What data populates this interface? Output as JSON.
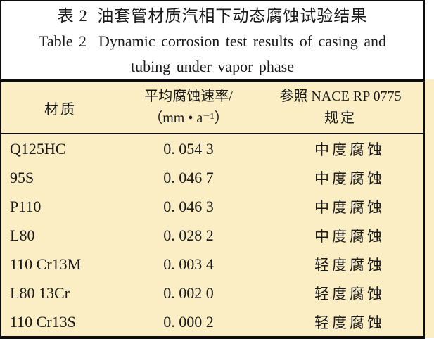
{
  "title": {
    "zh": "表 2  油套管材质汽相下动态腐蚀试验结果",
    "en_line1": "Table 2  Dynamic corrosion test results of casing and",
    "en_line2": "tubing under vapor phase"
  },
  "table": {
    "columns": {
      "material": "材质",
      "rate_line1": "平均腐蚀速率/",
      "rate_line2": "（mm • a⁻¹）",
      "nace_line1": "参照 NACE RP 0775",
      "nace_line2": "规定"
    },
    "rows": [
      {
        "material": "Q125HC",
        "rate": "0. 054 3",
        "grade": "中度腐蚀"
      },
      {
        "material": "95S",
        "rate": "0. 046 7",
        "grade": "中度腐蚀"
      },
      {
        "material": "P110",
        "rate": "0. 046 3",
        "grade": "中度腐蚀"
      },
      {
        "material": "L80",
        "rate": "0. 028 2",
        "grade": "中度腐蚀"
      },
      {
        "material": "110 Cr13M",
        "rate": "0. 003 4",
        "grade": "轻度腐蚀"
      },
      {
        "material": "L80 13Cr",
        "rate": "0. 002 0",
        "grade": "轻度腐蚀"
      },
      {
        "material": "110 Cr13S",
        "rate": "0. 000 2",
        "grade": "轻度腐蚀"
      }
    ]
  },
  "colors": {
    "table_background": "#fbeec5",
    "rule": "#0d0d0d",
    "text": "#1a1a1a",
    "caption_background": "#ffffff"
  }
}
